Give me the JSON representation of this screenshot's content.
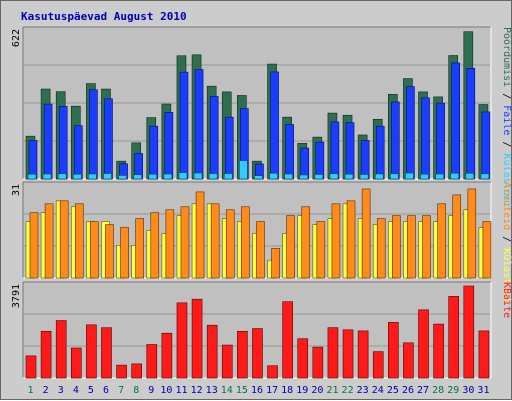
{
  "title": "Kasutuspäevad August 2010",
  "colors": {
    "pages": "#2f6f4f",
    "files": "#1a3dff",
    "visits": "#33ccff",
    "hits": "#ff8c1a",
    "sites": "#ffff44",
    "kbytes": "#ff1a1a",
    "weekend_day": "#007744",
    "weekday_day": "#0000aa"
  },
  "right_labels": {
    "top": [
      "Pöördumisi",
      "Faile",
      "Külastusi"
    ],
    "middle": [
      "Arvuteid",
      "Külastusi"
    ],
    "bottom": [
      "KBaite"
    ]
  },
  "chart_data": [
    {
      "type": "bar",
      "panel": "top",
      "y_max_label": "622",
      "ylim": [
        0,
        622
      ],
      "categories": [
        "1",
        "2",
        "3",
        "4",
        "5",
        "6",
        "7",
        "8",
        "9",
        "10",
        "11",
        "12",
        "13",
        "14",
        "15",
        "16",
        "17",
        "18",
        "19",
        "20",
        "21",
        "22",
        "23",
        "24",
        "25",
        "26",
        "27",
        "28",
        "29",
        "30",
        "31"
      ],
      "weekend_days": [
        "1",
        "7",
        "8",
        "14",
        "15",
        "21",
        "22",
        "28",
        "29"
      ],
      "series": [
        {
          "name": "Pöördumisi",
          "values": [
            180,
            378,
            367,
            306,
            401,
            378,
            75,
            152,
            258,
            315,
            518,
            522,
            390,
            366,
            351,
            75,
            483,
            260,
            150,
            176,
            277,
            268,
            185,
            251,
            356,
            422,
            366,
            345,
            519,
            619,
            313
          ]
        },
        {
          "name": "Faile",
          "values": [
            162,
            315,
            305,
            224,
            375,
            337,
            64,
            107,
            222,
            280,
            449,
            460,
            347,
            260,
            296,
            63,
            450,
            229,
            130,
            155,
            240,
            237,
            162,
            222,
            324,
            388,
            341,
            319,
            488,
            465,
            282
          ]
        },
        {
          "name": "Külastusi",
          "values": [
            20,
            21,
            22,
            20,
            21,
            23,
            15,
            18,
            20,
            21,
            27,
            25,
            23,
            23,
            77,
            14,
            24,
            21,
            17,
            19,
            22,
            20,
            19,
            21,
            22,
            25,
            20,
            21,
            24,
            24,
            22
          ]
        }
      ]
    },
    {
      "type": "bar",
      "panel": "middle",
      "y_max_label": "31",
      "ylim": [
        0,
        31
      ],
      "categories": [
        "1",
        "2",
        "3",
        "4",
        "5",
        "6",
        "7",
        "8",
        "9",
        "10",
        "11",
        "12",
        "13",
        "14",
        "15",
        "16",
        "17",
        "18",
        "19",
        "20",
        "21",
        "22",
        "23",
        "24",
        "25",
        "26",
        "27",
        "28",
        "29",
        "30",
        "31"
      ],
      "series": [
        {
          "name": "Arvuteid",
          "values": [
            22,
            25,
            26,
            25,
            19,
            18,
            17,
            20,
            22,
            23,
            24,
            29,
            25,
            23,
            24,
            19,
            10,
            21,
            24,
            19,
            25,
            26,
            30,
            20,
            21,
            21,
            21,
            25,
            28,
            30,
            19
          ]
        },
        {
          "name": "Külastusi",
          "values": [
            19,
            22,
            26,
            24,
            19,
            19,
            11,
            11,
            16,
            15,
            21,
            25,
            25,
            20,
            19,
            15,
            6,
            15,
            21,
            18,
            20,
            25,
            20,
            18,
            19,
            19,
            19,
            19,
            21,
            23,
            17
          ]
        }
      ]
    },
    {
      "type": "bar",
      "panel": "bottom",
      "y_max_label": "3791",
      "ylim": [
        0,
        3791
      ],
      "categories": [
        "1",
        "2",
        "3",
        "4",
        "5",
        "6",
        "7",
        "8",
        "9",
        "10",
        "11",
        "12",
        "13",
        "14",
        "15",
        "16",
        "17",
        "18",
        "19",
        "20",
        "21",
        "22",
        "23",
        "24",
        "25",
        "26",
        "27",
        "28",
        "29",
        "30",
        "31"
      ],
      "series": [
        {
          "name": "KBaite",
          "values": [
            911,
            1926,
            2368,
            1236,
            2191,
            2073,
            531,
            581,
            1380,
            1847,
            3097,
            3247,
            2175,
            1357,
            1926,
            2038,
            505,
            3143,
            1618,
            1272,
            2073,
            1985,
            1941,
            1086,
            2294,
            1449,
            2808,
            2221,
            3365,
            3791,
            1941
          ]
        }
      ]
    }
  ]
}
